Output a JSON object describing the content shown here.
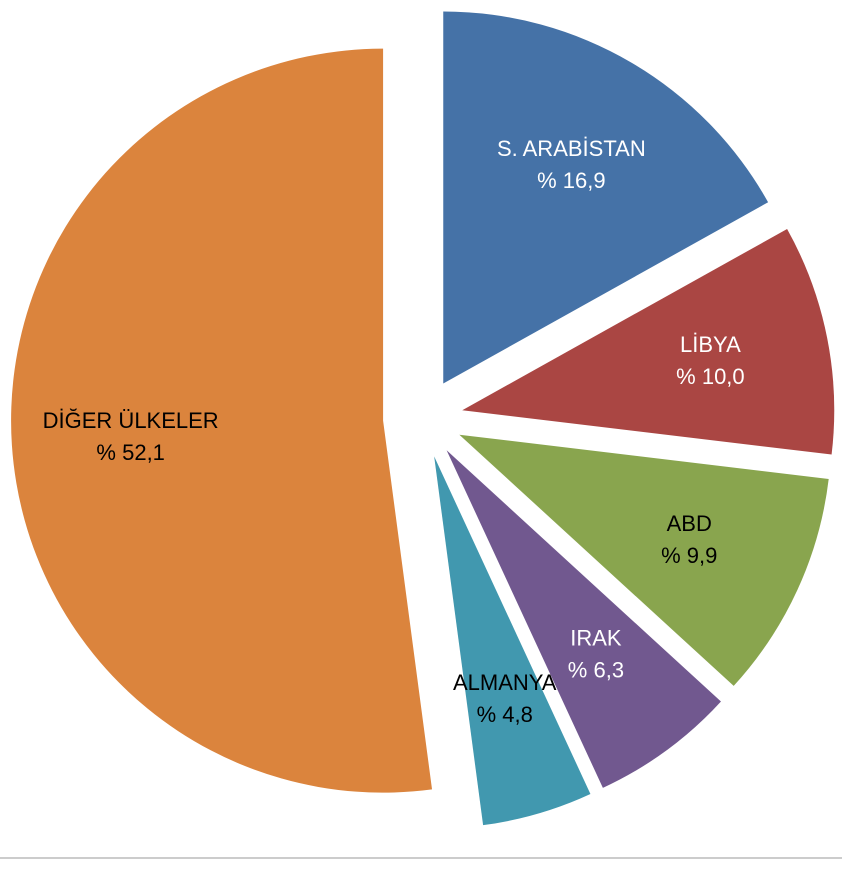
{
  "chart_data": {
    "type": "pie",
    "categories": [
      "S. ARABİSTAN",
      "LİBYA",
      "ABD",
      "IRAK",
      "ALMANYA",
      "DİĞER ÜLKELER"
    ],
    "values": [
      16.9,
      10.0,
      9.9,
      6.3,
      4.8,
      52.1
    ],
    "value_labels": [
      "% 16,9",
      "% 10,0",
      "% 9,9",
      "% 6,3",
      "% 4,8",
      "% 52,1"
    ],
    "colors": [
      "#4572a7",
      "#aa4643",
      "#89a54e",
      "#71588f",
      "#4198af",
      "#db843d"
    ],
    "label_colors": [
      "#ffffff",
      "#ffffff",
      "#000000",
      "#ffffff",
      "#000000",
      "#000000"
    ],
    "exploded": true
  }
}
